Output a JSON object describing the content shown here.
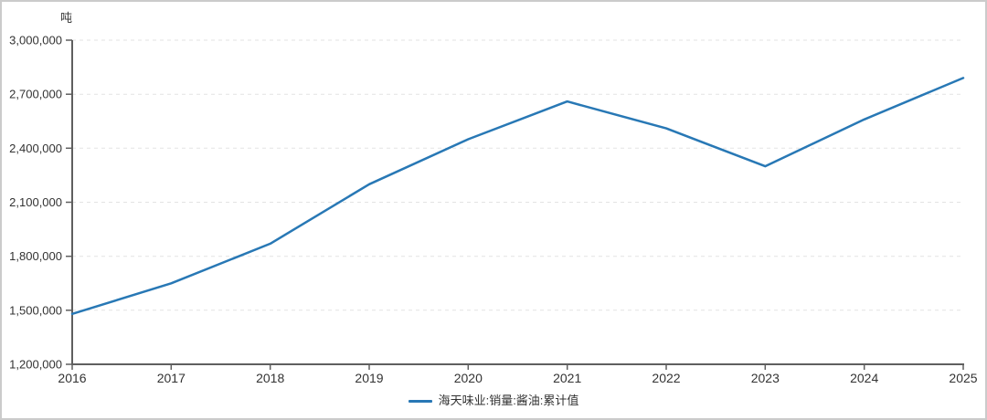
{
  "chart": {
    "colors": {
      "line": "#2878b5",
      "axis": "#5f5f5f",
      "grid": "#e3e3e3",
      "text": "#333333",
      "background": "#ffffff",
      "frame_border": "#cbcbcb"
    }
  },
  "chart_data": {
    "type": "line",
    "title": "",
    "xlabel": "",
    "ylabel": "吨",
    "x": [
      "2016",
      "2017",
      "2018",
      "2019",
      "2020",
      "2021",
      "2022",
      "2023",
      "2024",
      "2025"
    ],
    "series": [
      {
        "name": "海天味业:销量:酱油:累计值",
        "values": [
          1480000,
          1650000,
          1870000,
          2200000,
          2450000,
          2660000,
          2510000,
          2300000,
          2560000,
          2790000
        ]
      }
    ],
    "ylim": [
      1200000,
      3000000
    ],
    "ytick_interval": 300000,
    "yticks": [
      {
        "value": 1200000,
        "label": "1,200,000"
      },
      {
        "value": 1500000,
        "label": "1,500,000"
      },
      {
        "value": 1800000,
        "label": "1,800,000"
      },
      {
        "value": 2100000,
        "label": "2,100,000"
      },
      {
        "value": 2400000,
        "label": "2,400,000"
      },
      {
        "value": 2700000,
        "label": "2,700,000"
      },
      {
        "value": 3000000,
        "label": "3,000,000"
      }
    ],
    "grid": "horizontal-dashed",
    "legend_position": "bottom-center"
  }
}
